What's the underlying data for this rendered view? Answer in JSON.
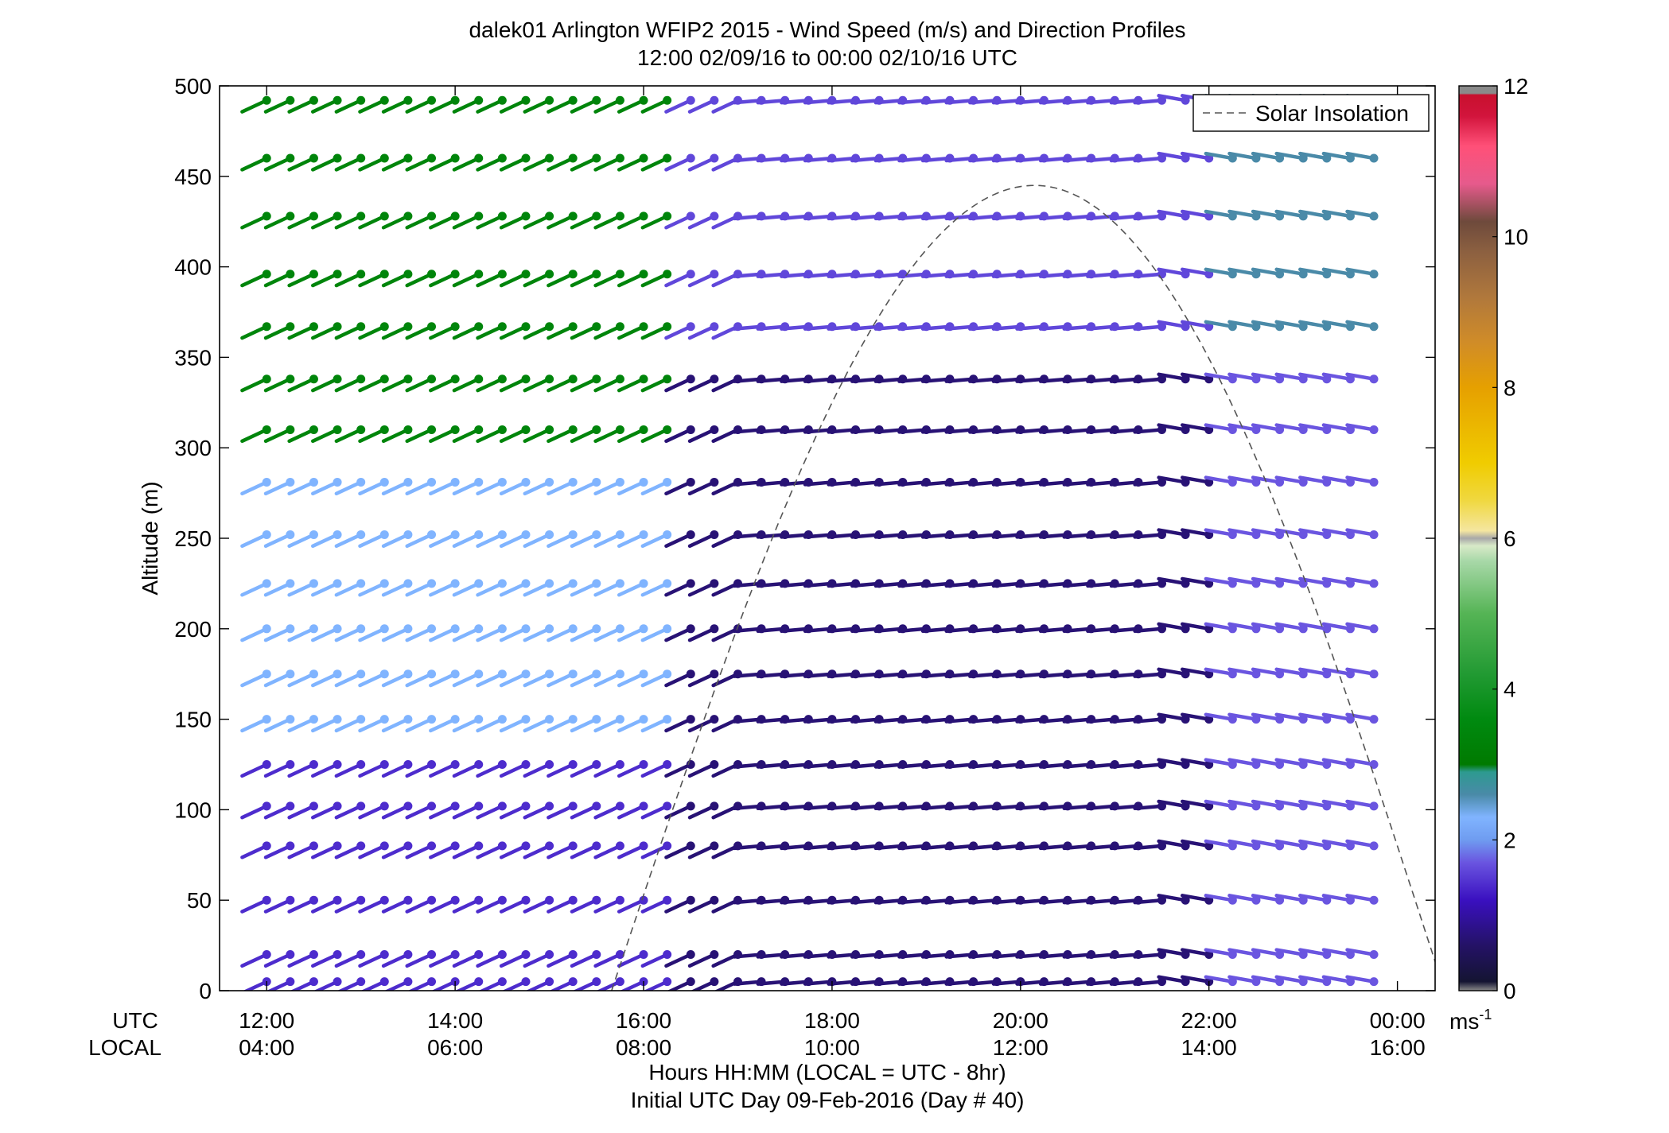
{
  "figure": {
    "title_line1": "dalek01 Arlington WFIP2 2015 - Wind Speed (m/s) and Direction Profiles",
    "title_line2": "12:00 02/09/16 to 00:00 02/10/16  UTC",
    "footer_line1": "Hours HH:MM  (LOCAL = UTC - 8hr)",
    "footer_line2": "Initial UTC Day 09-Feb-2016 (Day # 40)",
    "utc_row_label": "UTC",
    "local_row_label": "LOCAL",
    "colorbar_unit": "ms",
    "colorbar_unit_exp": "-1"
  },
  "chart_data": {
    "type": "scatter",
    "marker": "wind-barb",
    "xlabel": "Hours HH:MM",
    "ylabel": "Altitude (m)",
    "xlim_hours": [
      11.5,
      24.4
    ],
    "ylim": [
      0,
      500
    ],
    "yticks": [
      0,
      50,
      100,
      150,
      200,
      250,
      300,
      350,
      400,
      450,
      500
    ],
    "xticks_hours": [
      12,
      14,
      16,
      18,
      20,
      22,
      24
    ],
    "xtick_labels_utc": [
      "12:00",
      "14:00",
      "16:00",
      "18:00",
      "20:00",
      "22:00",
      "00:00"
    ],
    "xtick_labels_local": [
      "04:00",
      "06:00",
      "08:00",
      "10:00",
      "12:00",
      "14:00",
      "16:00"
    ],
    "grid": false,
    "legend": {
      "placement": "top-right",
      "entries": [
        "Solar Insolation"
      ]
    },
    "colorbar": {
      "range": [
        0,
        12
      ],
      "ticks": [
        0,
        2,
        4,
        6,
        8,
        10,
        12
      ],
      "tick_labels": [
        "0",
        "2",
        "4",
        "6",
        "8",
        "10",
        "12"
      ],
      "stops": [
        {
          "v": 0.0,
          "c": "#8a8a8a"
        },
        {
          "v": 0.12,
          "c": "#141432"
        },
        {
          "v": 0.6,
          "c": "#241266"
        },
        {
          "v": 1.2,
          "c": "#3a10c0"
        },
        {
          "v": 1.7,
          "c": "#6a55e0"
        },
        {
          "v": 2.0,
          "c": "#6f9cf0"
        },
        {
          "v": 2.3,
          "c": "#80b4ff"
        },
        {
          "v": 2.6,
          "c": "#4a8aa8"
        },
        {
          "v": 2.9,
          "c": "#2d9a90"
        },
        {
          "v": 3.0,
          "c": "#007a00"
        },
        {
          "v": 3.6,
          "c": "#008a10"
        },
        {
          "v": 4.2,
          "c": "#229a33"
        },
        {
          "v": 5.0,
          "c": "#55b455"
        },
        {
          "v": 5.7,
          "c": "#a8d8a8"
        },
        {
          "v": 5.9,
          "c": "#d8eac8"
        },
        {
          "v": 6.0,
          "c": "#a8a8a8"
        },
        {
          "v": 6.1,
          "c": "#f5e6a0"
        },
        {
          "v": 6.5,
          "c": "#f0d840"
        },
        {
          "v": 7.0,
          "c": "#f0cc00"
        },
        {
          "v": 8.0,
          "c": "#e6a000"
        },
        {
          "v": 8.6,
          "c": "#d08c28"
        },
        {
          "v": 9.2,
          "c": "#b0783c"
        },
        {
          "v": 9.8,
          "c": "#8c6040"
        },
        {
          "v": 10.2,
          "c": "#6e4a3c"
        },
        {
          "v": 10.7,
          "c": "#e65a8c"
        },
        {
          "v": 11.2,
          "c": "#ff5078"
        },
        {
          "v": 11.6,
          "c": "#d2143c"
        },
        {
          "v": 11.88,
          "c": "#c8102e"
        },
        {
          "v": 11.9,
          "c": "#8a8a8a"
        },
        {
          "v": 12.0,
          "c": "#8a8a8a"
        }
      ]
    },
    "altitudes_m": [
      5,
      20,
      50,
      80,
      102,
      125,
      150,
      175,
      200,
      225,
      252,
      281,
      310,
      338,
      367,
      396,
      428,
      460,
      492
    ],
    "time_hours_step": 0.25,
    "observation_times_hours": [
      12.0,
      23.75
    ],
    "solar_insolation": {
      "name": "Solar Insolation",
      "style": "dashed",
      "peak_altitude": 445,
      "peak_time_hours": 20.15,
      "zero_crossing_hours": [
        15.66,
        24.5
      ]
    },
    "speed_regimes": [
      {
        "hours": [
          12.0,
          16.4
        ],
        "altitudes_m": [
          300,
          500
        ],
        "speed_ms": 3.4
      },
      {
        "hours": [
          12.0,
          16.4
        ],
        "altitudes_m": [
          130,
          300
        ],
        "speed_ms": 2.3
      },
      {
        "hours": [
          12.0,
          16.4
        ],
        "altitudes_m": [
          0,
          130
        ],
        "speed_ms": 1.4
      },
      {
        "hours": [
          16.4,
          22.0
        ],
        "altitudes_m": [
          350,
          500
        ],
        "speed_ms": 1.6
      },
      {
        "hours": [
          16.4,
          22.0
        ],
        "altitudes_m": [
          0,
          350
        ],
        "speed_ms": 0.7
      },
      {
        "hours": [
          22.0,
          23.75
        ],
        "altitudes_m": [
          350,
          500
        ],
        "speed_ms": 2.6
      },
      {
        "hours": [
          22.0,
          23.75
        ],
        "altitudes_m": [
          0,
          350
        ],
        "speed_ms": 1.7
      }
    ],
    "direction_regimes_deg_from": [
      {
        "hours": [
          12.0,
          17.0
        ],
        "altitudes_m": [
          0,
          500
        ],
        "dir_deg": 245
      },
      {
        "hours": [
          17.0,
          21.5
        ],
        "altitudes_m": [
          0,
          500
        ],
        "dir_deg": 265
      },
      {
        "hours": [
          21.5,
          23.75
        ],
        "altitudes_m": [
          0,
          500
        ],
        "dir_deg": 280
      }
    ]
  }
}
